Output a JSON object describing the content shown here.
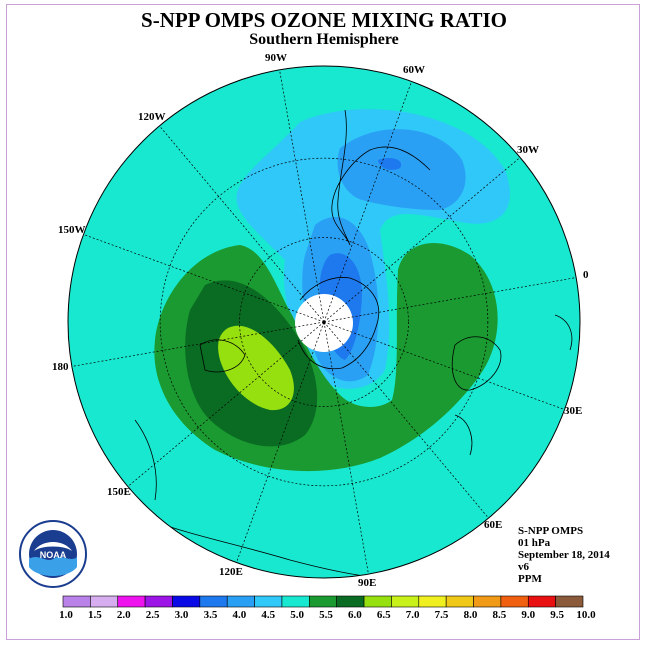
{
  "title": "S-NPP OMPS OZONE MIXING RATIO",
  "subtitle": "Southern Hemisphere",
  "info": {
    "instrument": "S-NPP OMPS",
    "pressure": "01 hPa",
    "date": "September 18, 2014",
    "version": "v6",
    "units": "PPM"
  },
  "longitude_labels": [
    "90W",
    "60W",
    "30W",
    "0",
    "30E",
    "60E",
    "90E",
    "120E",
    "150E",
    "180",
    "150W",
    "120W"
  ],
  "colorbar": {
    "labels": [
      "1.0",
      "1.5",
      "2.0",
      "2.5",
      "3.0",
      "3.5",
      "4.0",
      "4.5",
      "5.0",
      "5.5",
      "6.0",
      "6.5",
      "7.0",
      "7.5",
      "8.0",
      "8.5",
      "9.0",
      "9.5",
      "10.0"
    ],
    "colors": [
      "#b882e8",
      "#d6aef0",
      "#ee12ee",
      "#9c14e6",
      "#0a0ae6",
      "#1e78ee",
      "#2aa0f5",
      "#30c8f8",
      "#18e8d0",
      "#1a9a30",
      "#0a6c22",
      "#96e010",
      "#c8f01a",
      "#f0f020",
      "#f0c818",
      "#f09a18",
      "#f06010",
      "#e81010",
      "#8b5a3a"
    ]
  },
  "logo_text": "NOAA",
  "colors": {
    "background_level": "#18e8d0",
    "level_3_5": "#1e78ee",
    "level_4_0": "#2aa0f5",
    "level_4_5": "#30c8f8",
    "level_5_5": "#1a9a30",
    "level_6_0": "#0a6c22",
    "level_6_5": "#96e010"
  }
}
